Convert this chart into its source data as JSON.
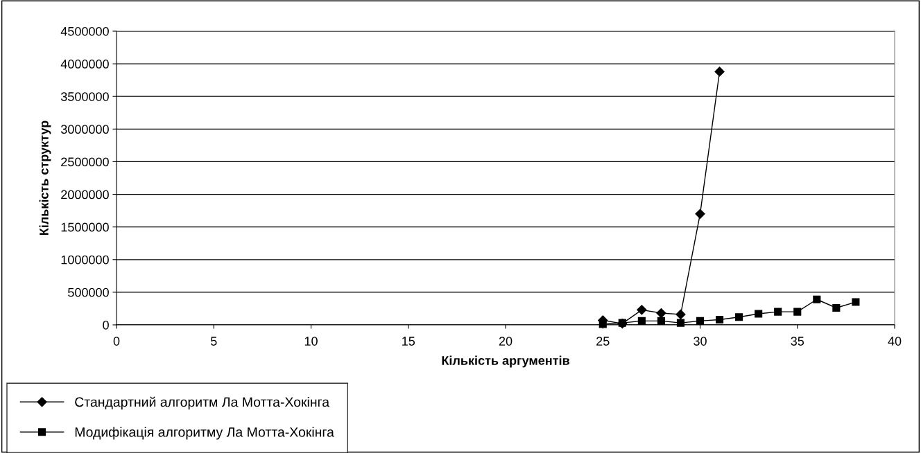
{
  "chart_data": {
    "type": "line",
    "xlabel": "Кількість аргументів",
    "ylabel": "Кількість структур",
    "xlim": [
      0,
      40
    ],
    "xticks": [
      0,
      5,
      10,
      15,
      20,
      25,
      30,
      35,
      40
    ],
    "ylim": [
      0,
      4500000
    ],
    "yticks": [
      0,
      500000,
      1000000,
      1500000,
      2000000,
      2500000,
      3000000,
      3500000,
      4000000,
      4500000
    ],
    "grid": "y",
    "legend": "bottom left",
    "series": [
      {
        "name": "Стандартний алгоритм Ла Мотта-Хокінга",
        "color": "#000000",
        "marker": "diamond",
        "x": [
          25,
          26,
          27,
          28,
          29,
          30,
          31
        ],
        "values": [
          70000,
          20000,
          230000,
          180000,
          160000,
          1700000,
          3880000
        ]
      },
      {
        "name": "Модифікація алгоритму Ла Мотта-Хокінга",
        "color": "#000000",
        "marker": "square",
        "x": [
          25,
          26,
          27,
          28,
          29,
          30,
          31,
          32,
          33,
          34,
          35,
          36,
          37,
          38
        ],
        "values": [
          10000,
          30000,
          60000,
          60000,
          30000,
          60000,
          80000,
          120000,
          170000,
          200000,
          200000,
          390000,
          260000,
          350000
        ]
      }
    ]
  }
}
